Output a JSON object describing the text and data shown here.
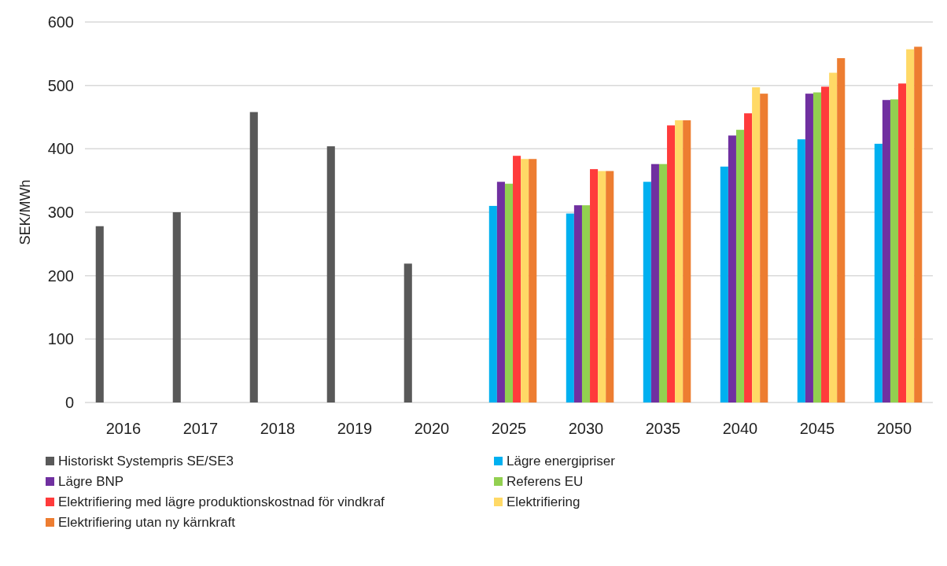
{
  "chart_data": {
    "type": "bar",
    "ylabel": "SEK/MWh",
    "categories": [
      "2016",
      "2017",
      "2018",
      "2019",
      "2020",
      "2025",
      "2030",
      "2035",
      "2040",
      "2045",
      "2050"
    ],
    "ylim": [
      0,
      600
    ],
    "yticks": [
      0,
      100,
      200,
      300,
      400,
      500,
      600
    ],
    "grid": "y",
    "legend": "bottom",
    "series": [
      {
        "name": "Historiskt Systempris SE/SE3",
        "color": "#595959",
        "values": [
          278,
          300,
          458,
          404,
          219,
          null,
          null,
          null,
          null,
          null,
          null
        ]
      },
      {
        "name": "Lägre energipriser",
        "color": "#00b0f0",
        "values": [
          null,
          null,
          null,
          null,
          null,
          310,
          298,
          348,
          372,
          415,
          408
        ]
      },
      {
        "name": "Lägre BNP",
        "color": "#7030a0",
        "values": [
          null,
          null,
          null,
          null,
          null,
          348,
          311,
          376,
          421,
          487,
          477
        ]
      },
      {
        "name": "Referens EU",
        "color": "#92d050",
        "values": [
          null,
          null,
          null,
          null,
          null,
          345,
          311,
          376,
          430,
          489,
          478
        ]
      },
      {
        "name": "Elektrifiering med lägre produktionskostnad för vindkraf",
        "color": "#ff3b3b",
        "values": [
          null,
          null,
          null,
          null,
          null,
          389,
          368,
          437,
          456,
          498,
          503
        ]
      },
      {
        "name": "Elektrifiering",
        "color": "#ffd966",
        "values": [
          null,
          null,
          null,
          null,
          null,
          384,
          365,
          445,
          497,
          520,
          557
        ]
      },
      {
        "name": "Elektrifiering utan ny kärnkraft",
        "color": "#ed7d31",
        "values": [
          null,
          null,
          null,
          null,
          null,
          384,
          365,
          445,
          487,
          543,
          561
        ]
      }
    ]
  }
}
